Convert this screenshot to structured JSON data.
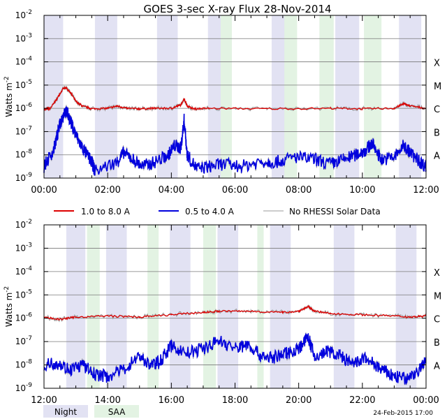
{
  "title": "GOES 3-sec X-ray Flux   28-Nov-2014",
  "timestamp": "24-Feb-2015 17:00",
  "colors": {
    "long_channel": "#dd0000",
    "short_channel": "#0000dd",
    "no_rhessi": "#999999",
    "night": "#e2e2f3",
    "saa": "#e3f3e3"
  },
  "legend": {
    "long": "1.0 to 8.0 A",
    "short": "0.5 to 4.0 A",
    "no_rhessi": "No RHESSI Solar Data",
    "night": "Night",
    "saa": "SAA"
  },
  "chart_data": [
    {
      "type": "line",
      "panel": "top",
      "title": "GOES 3-sec X-ray Flux   28-Nov-2014",
      "ylabel": "Watts m-2",
      "y_scale": "log",
      "ylim": [
        1e-09,
        0.01
      ],
      "xlim_hours": [
        0,
        12
      ],
      "x_ticks": [
        "00:00",
        "02:00",
        "04:00",
        "06:00",
        "08:00",
        "10:00",
        "12:00"
      ],
      "y_tick_mantissa": "10",
      "y_tick_exponents": [
        "-9",
        "-8",
        "-7",
        "-6",
        "-5",
        "-4",
        "-3",
        "-2"
      ],
      "flare_classes": [
        "A",
        "B",
        "C",
        "M",
        "X"
      ],
      "night_intervals_hours": [
        [
          0.0,
          0.6
        ],
        [
          1.6,
          2.3
        ],
        [
          3.55,
          4.2
        ],
        [
          5.15,
          5.9
        ],
        [
          7.15,
          7.85
        ],
        [
          9.15,
          9.9
        ],
        [
          11.15,
          11.85
        ]
      ],
      "saa_intervals_hours": [
        [
          5.55,
          5.9
        ],
        [
          7.55,
          7.95
        ],
        [
          8.65,
          9.1
        ],
        [
          10.05,
          10.6
        ]
      ],
      "series": [
        {
          "name": "1.0 to 8.0 A",
          "points_hours_logflux": [
            [
              0,
              -6.05
            ],
            [
              0.2,
              -6.0
            ],
            [
              0.4,
              -5.6
            ],
            [
              0.6,
              -5.15
            ],
            [
              0.7,
              -5.12
            ],
            [
              0.85,
              -5.35
            ],
            [
              1.0,
              -5.7
            ],
            [
              1.2,
              -5.9
            ],
            [
              1.5,
              -6.02
            ],
            [
              2.0,
              -6.0
            ],
            [
              2.3,
              -5.9
            ],
            [
              2.6,
              -6.0
            ],
            [
              3.0,
              -6.02
            ],
            [
              3.5,
              -6.0
            ],
            [
              4.0,
              -6.0
            ],
            [
              4.3,
              -5.85
            ],
            [
              4.4,
              -5.6
            ],
            [
              4.5,
              -5.9
            ],
            [
              4.7,
              -6.02
            ],
            [
              5.2,
              -6.0
            ],
            [
              7.0,
              -6.02
            ],
            [
              9.0,
              -6.0
            ],
            [
              10.0,
              -6.02
            ],
            [
              11.0,
              -6.0
            ],
            [
              11.3,
              -5.8
            ],
            [
              11.5,
              -5.9
            ],
            [
              12,
              -6.0
            ]
          ]
        },
        {
          "name": "0.5 to 4.0 A",
          "points_hours_logflux": [
            [
              0,
              -8.5
            ],
            [
              0.3,
              -7.8
            ],
            [
              0.5,
              -6.7
            ],
            [
              0.65,
              -6.1
            ],
            [
              0.75,
              -6.25
            ],
            [
              0.9,
              -6.8
            ],
            [
              1.05,
              -7.3
            ],
            [
              1.25,
              -7.8
            ],
            [
              1.5,
              -8.3
            ],
            [
              1.6,
              -8.7
            ],
            [
              2.3,
              -8.3
            ],
            [
              2.5,
              -7.9
            ],
            [
              2.8,
              -8.2
            ],
            [
              3.1,
              -8.5
            ],
            [
              3.5,
              -8.3
            ],
            [
              3.9,
              -8.0
            ],
            [
              4.1,
              -7.6
            ],
            [
              4.3,
              -7.7
            ],
            [
              4.4,
              -6.5
            ],
            [
              4.5,
              -8.0
            ],
            [
              4.8,
              -8.6
            ],
            [
              5.2,
              -8.5
            ],
            [
              5.6,
              -8.4
            ],
            [
              6.2,
              -8.5
            ],
            [
              6.8,
              -8.3
            ],
            [
              7.3,
              -8.3
            ],
            [
              7.9,
              -8.1
            ],
            [
              8.5,
              -8.2
            ],
            [
              9.0,
              -8.4
            ],
            [
              9.4,
              -8.2
            ],
            [
              9.8,
              -8.0
            ],
            [
              10.1,
              -7.8
            ],
            [
              10.3,
              -7.5
            ],
            [
              10.6,
              -8.2
            ],
            [
              11.0,
              -8.1
            ],
            [
              11.3,
              -7.6
            ],
            [
              11.5,
              -7.9
            ],
            [
              11.8,
              -8.3
            ],
            [
              12,
              -8.5
            ]
          ]
        }
      ]
    },
    {
      "type": "line",
      "panel": "bottom",
      "ylabel": "Watts m-2",
      "y_scale": "log",
      "ylim": [
        1e-09,
        0.01
      ],
      "xlim_hours": [
        12,
        24
      ],
      "x_ticks": [
        "12:00",
        "14:00",
        "16:00",
        "18:00",
        "20:00",
        "22:00",
        "00:00"
      ],
      "y_tick_mantissa": "10",
      "y_tick_exponents": [
        "-9",
        "-8",
        "-7",
        "-6",
        "-5",
        "-4",
        "-3",
        "-2"
      ],
      "flare_classes": [
        "A",
        "B",
        "C",
        "M",
        "X"
      ],
      "night_intervals_hours": [
        [
          12.7,
          13.3
        ],
        [
          13.95,
          14.6
        ],
        [
          15.95,
          16.6
        ],
        [
          17.45,
          18.1
        ],
        [
          19.1,
          19.75
        ],
        [
          21.1,
          21.75
        ],
        [
          23.05,
          23.7
        ]
      ],
      "saa_intervals_hours": [
        [
          13.35,
          13.75
        ],
        [
          15.25,
          15.6
        ],
        [
          17.0,
          17.4
        ],
        [
          18.7,
          18.9
        ]
      ],
      "series": [
        {
          "name": "1.0 to 8.0 A",
          "points_hours_logflux": [
            [
              12,
              -5.95
            ],
            [
              12.5,
              -6.05
            ],
            [
              13.0,
              -5.95
            ],
            [
              14.0,
              -5.9
            ],
            [
              15.0,
              -5.95
            ],
            [
              16.0,
              -5.85
            ],
            [
              17.0,
              -5.75
            ],
            [
              17.5,
              -5.7
            ],
            [
              18.5,
              -5.7
            ],
            [
              19.5,
              -5.75
            ],
            [
              20.0,
              -5.7
            ],
            [
              20.3,
              -5.5
            ],
            [
              20.5,
              -5.7
            ],
            [
              21.0,
              -5.8
            ],
            [
              22.0,
              -5.85
            ],
            [
              23.0,
              -5.9
            ],
            [
              23.5,
              -5.95
            ],
            [
              24,
              -5.9
            ]
          ]
        },
        {
          "name": "0.5 to 4.0 A",
          "points_hours_logflux": [
            [
              12,
              -8.0
            ],
            [
              12.4,
              -7.9
            ],
            [
              12.8,
              -8.2
            ],
            [
              13.2,
              -8.0
            ],
            [
              13.6,
              -8.4
            ],
            [
              14.0,
              -8.5
            ],
            [
              14.5,
              -8.2
            ],
            [
              15.0,
              -7.6
            ],
            [
              15.3,
              -8.0
            ],
            [
              15.6,
              -7.9
            ],
            [
              16.0,
              -7.2
            ],
            [
              16.5,
              -7.5
            ],
            [
              17.0,
              -7.3
            ],
            [
              17.5,
              -6.95
            ],
            [
              18.0,
              -7.3
            ],
            [
              18.4,
              -7.1
            ],
            [
              18.8,
              -7.6
            ],
            [
              19.2,
              -7.7
            ],
            [
              19.6,
              -7.5
            ],
            [
              20.0,
              -7.3
            ],
            [
              20.3,
              -6.8
            ],
            [
              20.5,
              -7.7
            ],
            [
              20.9,
              -7.4
            ],
            [
              21.3,
              -7.6
            ],
            [
              21.7,
              -8.0
            ],
            [
              22.1,
              -7.7
            ],
            [
              22.6,
              -8.2
            ],
            [
              23.0,
              -8.5
            ],
            [
              23.4,
              -8.6
            ],
            [
              23.8,
              -8.2
            ],
            [
              24,
              -7.8
            ]
          ]
        }
      ]
    }
  ]
}
